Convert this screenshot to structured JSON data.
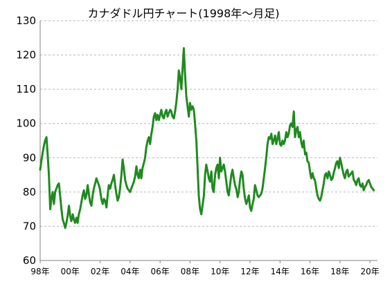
{
  "chart_data": {
    "type": "line",
    "title": "カナダドル円チャート(1998年～月足)",
    "xlabel": "",
    "ylabel": "",
    "ylim": [
      60,
      130
    ],
    "xlim": [
      1998.0,
      2020.5
    ],
    "grid": true,
    "y_ticks": [
      60,
      70,
      80,
      90,
      100,
      110,
      120,
      130
    ],
    "x_ticks": [
      {
        "x": 1998,
        "label": "98年"
      },
      {
        "x": 2000,
        "label": "00年"
      },
      {
        "x": 2002,
        "label": "02年"
      },
      {
        "x": 2004,
        "label": "04年"
      },
      {
        "x": 2006,
        "label": "06年"
      },
      {
        "x": 2008,
        "label": "08年"
      },
      {
        "x": 2010,
        "label": "10年"
      },
      {
        "x": 2012,
        "label": "12年"
      },
      {
        "x": 2014,
        "label": "14年"
      },
      {
        "x": 2016,
        "label": "16年"
      },
      {
        "x": 2018,
        "label": "18年"
      },
      {
        "x": 2020,
        "label": "20年"
      }
    ],
    "colors": {
      "line": "#1f8a1f",
      "grid": "#b5b5b5",
      "axis": "#808080"
    },
    "series": [
      {
        "name": "",
        "x": [
          1998.0,
          1998.08,
          1998.17,
          1998.25,
          1998.33,
          1998.42,
          1998.5,
          1998.58,
          1998.67,
          1998.75,
          1998.83,
          1998.92,
          1999.0,
          1999.08,
          1999.17,
          1999.25,
          1999.33,
          1999.42,
          1999.5,
          1999.58,
          1999.67,
          1999.75,
          1999.83,
          1999.92,
          2000.0,
          2000.08,
          2000.17,
          2000.25,
          2000.33,
          2000.42,
          2000.5,
          2000.58,
          2000.67,
          2000.75,
          2000.83,
          2000.92,
          2001.0,
          2001.08,
          2001.17,
          2001.25,
          2001.33,
          2001.42,
          2001.5,
          2001.58,
          2001.67,
          2001.75,
          2001.83,
          2001.92,
          2002.0,
          2002.08,
          2002.17,
          2002.25,
          2002.33,
          2002.42,
          2002.5,
          2002.58,
          2002.67,
          2002.75,
          2002.83,
          2002.92,
          2003.0,
          2003.08,
          2003.17,
          2003.25,
          2003.33,
          2003.42,
          2003.5,
          2003.58,
          2003.67,
          2003.75,
          2003.83,
          2003.92,
          2004.0,
          2004.08,
          2004.17,
          2004.25,
          2004.33,
          2004.42,
          2004.5,
          2004.58,
          2004.67,
          2004.75,
          2004.83,
          2004.92,
          2005.0,
          2005.08,
          2005.17,
          2005.25,
          2005.33,
          2005.42,
          2005.5,
          2005.58,
          2005.67,
          2005.75,
          2005.83,
          2005.92,
          2006.0,
          2006.08,
          2006.17,
          2006.25,
          2006.33,
          2006.42,
          2006.5,
          2006.58,
          2006.67,
          2006.75,
          2006.83,
          2006.92,
          2007.0,
          2007.08,
          2007.17,
          2007.25,
          2007.33,
          2007.42,
          2007.5,
          2007.58,
          2007.67,
          2007.75,
          2007.83,
          2007.92,
          2008.0,
          2008.08,
          2008.17,
          2008.25,
          2008.33,
          2008.42,
          2008.5,
          2008.58,
          2008.67,
          2008.75,
          2008.83,
          2008.92,
          2009.0,
          2009.08,
          2009.17,
          2009.25,
          2009.33,
          2009.42,
          2009.5,
          2009.58,
          2009.67,
          2009.75,
          2009.83,
          2009.92,
          2010.0,
          2010.08,
          2010.17,
          2010.25,
          2010.33,
          2010.42,
          2010.5,
          2010.58,
          2010.67,
          2010.75,
          2010.83,
          2010.92,
          2011.0,
          2011.08,
          2011.17,
          2011.25,
          2011.33,
          2011.42,
          2011.5,
          2011.58,
          2011.67,
          2011.75,
          2011.83,
          2011.92,
          2012.0,
          2012.08,
          2012.17,
          2012.25,
          2012.33,
          2012.42,
          2012.5,
          2012.58,
          2012.67,
          2012.75,
          2012.83,
          2012.92,
          2013.0,
          2013.08,
          2013.17,
          2013.25,
          2013.33,
          2013.42,
          2013.5,
          2013.58,
          2013.67,
          2013.75,
          2013.83,
          2013.92,
          2014.0,
          2014.08,
          2014.17,
          2014.25,
          2014.33,
          2014.42,
          2014.5,
          2014.58,
          2014.67,
          2014.75,
          2014.83,
          2014.92,
          2015.0,
          2015.08,
          2015.17,
          2015.25,
          2015.33,
          2015.42,
          2015.5,
          2015.58,
          2015.67,
          2015.75,
          2015.83,
          2015.92,
          2016.0,
          2016.08,
          2016.17,
          2016.25,
          2016.33,
          2016.42,
          2016.5,
          2016.58,
          2016.67,
          2016.75,
          2016.83,
          2016.92,
          2017.0,
          2017.08,
          2017.17,
          2017.25,
          2017.33,
          2017.42,
          2017.5,
          2017.58,
          2017.67,
          2017.75,
          2017.83,
          2017.92,
          2018.0,
          2018.08,
          2018.17,
          2018.25,
          2018.33,
          2018.42,
          2018.5,
          2018.58,
          2018.67,
          2018.75,
          2018.83,
          2018.92,
          2019.0,
          2019.08,
          2019.17,
          2019.25,
          2019.33,
          2019.42,
          2019.5,
          2019.58,
          2019.67,
          2019.75,
          2019.83,
          2019.92,
          2020.0,
          2020.08,
          2020.17,
          2020.25
        ],
        "y": [
          86.5,
          89.0,
          91.5,
          93.5,
          95.0,
          96.0,
          91.0,
          85.0,
          75.0,
          78.0,
          80.0,
          76.5,
          80.0,
          81.0,
          82.0,
          82.5,
          79.0,
          75.0,
          72.0,
          71.0,
          69.5,
          71.0,
          73.0,
          76.0,
          73.0,
          71.5,
          73.5,
          72.0,
          71.0,
          72.5,
          71.0,
          73.5,
          75.0,
          77.0,
          79.0,
          80.5,
          78.0,
          79.0,
          82.0,
          79.5,
          77.0,
          76.0,
          79.0,
          81.0,
          82.5,
          84.0,
          83.0,
          82.0,
          80.5,
          78.0,
          76.5,
          78.0,
          77.5,
          75.5,
          79.0,
          82.0,
          81.0,
          82.5,
          83.5,
          85.0,
          82.0,
          79.5,
          77.5,
          78.5,
          81.0,
          85.0,
          89.5,
          87.0,
          83.5,
          82.0,
          81.0,
          80.5,
          80.0,
          81.0,
          82.0,
          83.0,
          84.5,
          87.5,
          85.0,
          84.0,
          86.5,
          84.0,
          87.0,
          88.5,
          90.0,
          93.0,
          95.0,
          96.0,
          94.0,
          97.0,
          99.0,
          102.0,
          103.0,
          101.0,
          102.5,
          101.0,
          102.5,
          104.0,
          102.0,
          101.5,
          103.0,
          104.0,
          102.0,
          103.0,
          104.0,
          103.5,
          102.0,
          101.5,
          103.5,
          106.0,
          110.0,
          115.5,
          113.5,
          110.0,
          116.0,
          122.0,
          114.0,
          108.0,
          105.0,
          102.0,
          106.0,
          104.0,
          105.0,
          104.0,
          100.0,
          95.0,
          87.0,
          79.0,
          75.0,
          73.5,
          76.0,
          79.0,
          85.0,
          88.0,
          86.0,
          84.0,
          83.0,
          86.0,
          81.0,
          80.0,
          85.0,
          87.0,
          88.0,
          84.0,
          90.0,
          86.0,
          87.0,
          88.0,
          86.0,
          83.0,
          80.0,
          79.0,
          82.0,
          85.0,
          86.5,
          84.0,
          82.0,
          81.0,
          78.5,
          80.0,
          83.5,
          86.0,
          85.0,
          81.0,
          78.0,
          76.5,
          77.5,
          79.0,
          75.5,
          74.5,
          76.5,
          78.0,
          82.0,
          80.5,
          79.0,
          78.5,
          79.0,
          79.5,
          81.0,
          84.0,
          87.0,
          90.0,
          94.0,
          96.0,
          95.5,
          97.0,
          94.0,
          95.0,
          96.5,
          94.0,
          95.5,
          97.5,
          94.0,
          93.5,
          95.0,
          94.0,
          95.0,
          97.5,
          96.0,
          97.0,
          99.5,
          100.0,
          99.0,
          103.5,
          96.0,
          98.0,
          99.0,
          96.0,
          97.5,
          94.5,
          93.0,
          95.0,
          91.0,
          91.5,
          89.0,
          88.5,
          86.0,
          84.0,
          85.5,
          84.0,
          83.5,
          81.0,
          79.0,
          78.0,
          77.5,
          78.5,
          80.5,
          82.5,
          85.0,
          85.5,
          84.0,
          86.0,
          85.0,
          83.5,
          84.0,
          85.5,
          87.0,
          88.5,
          89.0,
          87.0,
          90.0,
          88.5,
          86.5,
          85.0,
          84.0,
          86.0,
          86.5,
          84.5,
          85.0,
          85.5,
          86.0,
          83.5,
          83.0,
          82.0,
          83.5,
          84.0,
          82.0,
          81.5,
          82.5,
          80.5,
          81.5,
          82.0,
          83.0,
          83.5,
          82.5,
          81.5,
          81.0,
          80.5
        ]
      }
    ]
  }
}
